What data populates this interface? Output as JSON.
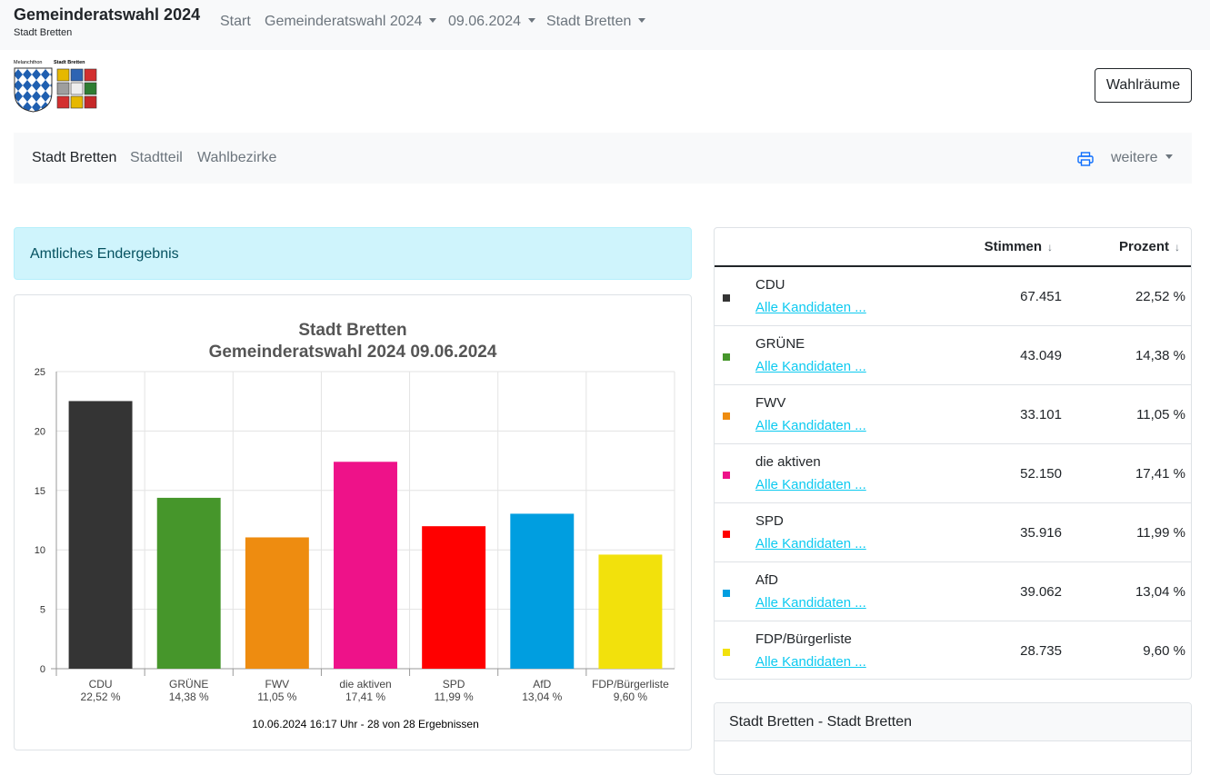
{
  "header": {
    "title": "Gemeinderatswahl 2024",
    "subtitle": "Stadt Bretten",
    "nav": [
      "Start",
      "Gemeinderatswahl 2024",
      "09.06.2024",
      "Stadt Bretten"
    ]
  },
  "logo": {
    "label_left": "Melanchthon",
    "label_right": "Stadt Bretten"
  },
  "wahlraeume_button": "Wahlräume",
  "subnav": {
    "items": [
      "Stadt Bretten",
      "Stadtteil",
      "Wahlbezirke"
    ],
    "more": "weitere"
  },
  "alert": "Amtliches Endergebnis",
  "table": {
    "col_votes": "Stimmen",
    "col_percent": "Prozent",
    "link_label": "Alle Kandidaten ...",
    "rows": [
      {
        "party": "CDU",
        "votes": "67.451",
        "percent": "22,52 %",
        "color": "#343434"
      },
      {
        "party": "GRÜNE",
        "votes": "43.049",
        "percent": "14,38 %",
        "color": "#46962b"
      },
      {
        "party": "FWV",
        "votes": "33.101",
        "percent": "11,05 %",
        "color": "#ee8c10"
      },
      {
        "party": "die aktiven",
        "votes": "52.150",
        "percent": "17,41 %",
        "color": "#ee1289"
      },
      {
        "party": "SPD",
        "votes": "35.916",
        "percent": "11,99 %",
        "color": "#ff0000"
      },
      {
        "party": "AfD",
        "votes": "39.062",
        "percent": "13,04 %",
        "color": "#009ee0"
      },
      {
        "party": "FDP/Bürgerliste",
        "votes": "28.735",
        "percent": "9,60 %",
        "color": "#f2e10c"
      }
    ]
  },
  "bottom_card": {
    "title": "Stadt Bretten - Stadt Bretten"
  },
  "chart_data": {
    "type": "bar",
    "title": "Stadt Bretten",
    "subtitle": "Gemeinderatswahl 2024 09.06.2024",
    "categories": [
      "CDU",
      "GRÜNE",
      "FWV",
      "die aktiven",
      "SPD",
      "AfD",
      "FDP/Bürgerliste"
    ],
    "category_sublabels": [
      "22,52 %",
      "14,38 %",
      "11,05 %",
      "17,41 %",
      "11,99 %",
      "13,04 %",
      "9,60 %"
    ],
    "values": [
      22.52,
      14.38,
      11.05,
      17.41,
      11.99,
      13.04,
      9.6
    ],
    "colors": [
      "#343434",
      "#46962b",
      "#ee8c10",
      "#ee1289",
      "#ff0000",
      "#009ee0",
      "#f2e10c"
    ],
    "yticks": [
      0,
      5,
      10,
      15,
      20,
      25
    ],
    "ylim": [
      0,
      25
    ],
    "grid": true,
    "footer": "10.06.2024 16:17 Uhr - 28 von 28 Ergebnissen"
  }
}
